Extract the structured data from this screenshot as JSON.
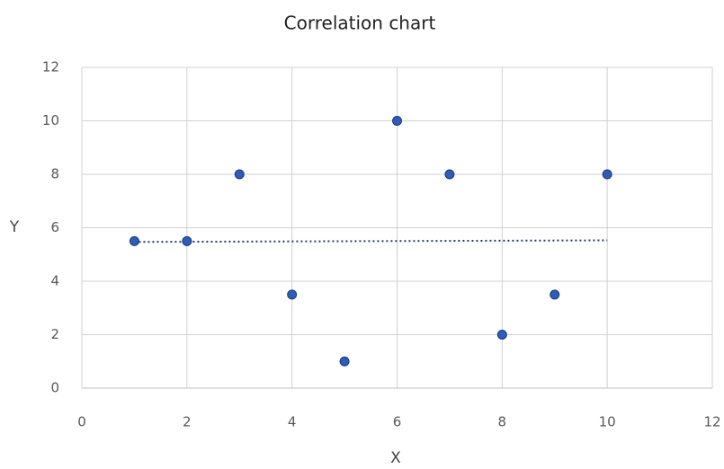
{
  "chart_data": {
    "type": "scatter",
    "title": "Correlation chart",
    "x_label": "X",
    "y_label": "Y",
    "series": [
      {
        "name": "Y",
        "color": "#2e5cb8",
        "x": [
          1,
          2,
          3,
          4,
          5,
          6,
          7,
          8,
          9,
          10
        ],
        "values": [
          5.5,
          5.5,
          8,
          3.5,
          1,
          10,
          8,
          2,
          3.5,
          8
        ]
      }
    ],
    "trendline": {
      "color": "#1f3a7a",
      "x": [
        1,
        10
      ],
      "values": [
        5.47,
        5.53
      ]
    },
    "xlim": [
      0,
      12
    ],
    "xticks": [
      0,
      2,
      4,
      6,
      8,
      10,
      12
    ],
    "ylim": [
      0,
      12
    ],
    "yticks": [
      0,
      2,
      4,
      6,
      8,
      10,
      12
    ],
    "grid": true
  }
}
